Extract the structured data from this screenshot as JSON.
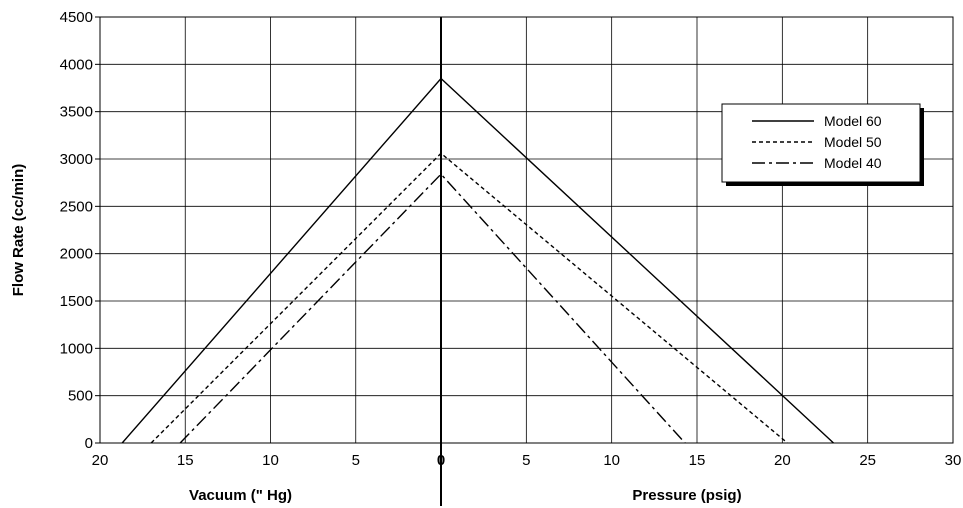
{
  "chart_data": {
    "type": "line",
    "title": "",
    "ylabel": "Flow Rate (cc/min)",
    "xlabel_left": "Vacuum (\" Hg)",
    "xlabel_right": "Pressure (psig)",
    "x_ticks_left": [
      "20",
      "15",
      "10",
      "5"
    ],
    "x_tick_zero": "0",
    "x_ticks_right": [
      "5",
      "10",
      "15",
      "20",
      "25",
      "30"
    ],
    "y_ticks": [
      "0",
      "500",
      "1000",
      "1500",
      "2000",
      "2500",
      "3000",
      "3500",
      "4000",
      "4500"
    ],
    "vacuum_range": [
      0,
      20
    ],
    "pressure_range": [
      0,
      30
    ],
    "ylim": [
      0,
      4500
    ],
    "grid": true,
    "legend_position": "top-right",
    "series": [
      {
        "name": "Model 60",
        "dash": "solid",
        "vacuum_points": [
          [
            18.7,
            0
          ],
          [
            0,
            3850
          ]
        ],
        "pressure_points": [
          [
            0,
            3850
          ],
          [
            23.0,
            0
          ]
        ]
      },
      {
        "name": "Model 50",
        "dash": "dotted",
        "vacuum_points": [
          [
            17.0,
            0
          ],
          [
            0,
            3060
          ]
        ],
        "pressure_points": [
          [
            0,
            3060
          ],
          [
            20.3,
            0
          ]
        ]
      },
      {
        "name": "Model 40",
        "dash": "dash-dot",
        "vacuum_points": [
          [
            15.3,
            0
          ],
          [
            0,
            2840
          ]
        ],
        "pressure_points": [
          [
            0,
            2840
          ],
          [
            14.3,
            0
          ]
        ]
      }
    ]
  }
}
